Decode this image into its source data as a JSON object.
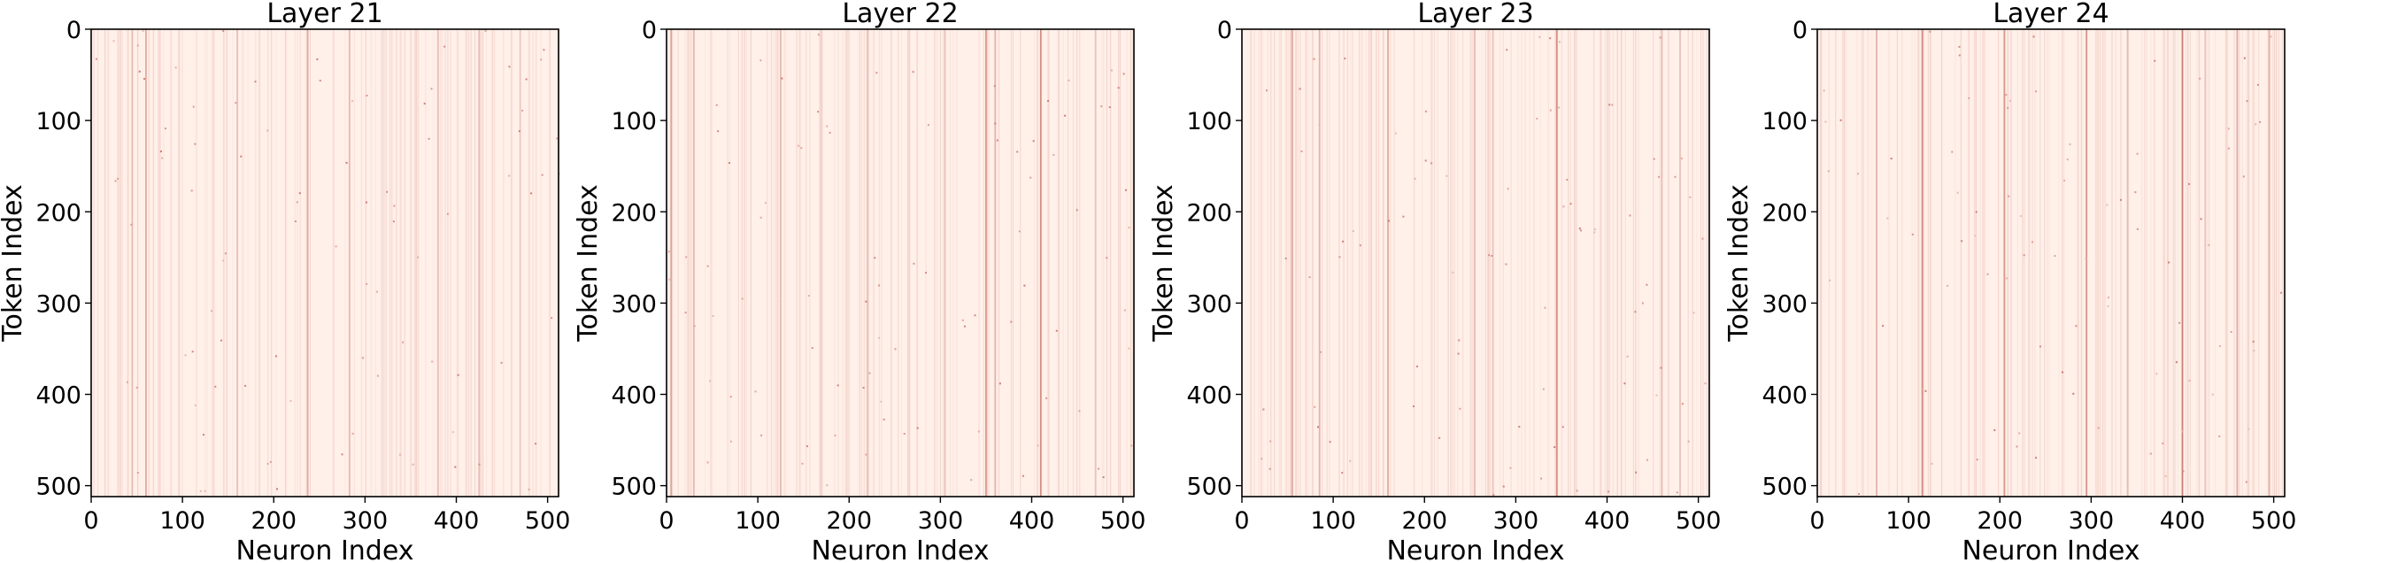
{
  "chart_data": [
    {
      "type": "heatmap",
      "title": "Layer 21",
      "xlabel": "Neuron Index",
      "ylabel": "Token Index",
      "xlim": [
        0,
        512
      ],
      "ylim": [
        512,
        0
      ],
      "xticks": [
        "0",
        "100",
        "200",
        "300",
        "400",
        "500"
      ],
      "yticks": [
        "0",
        "100",
        "200",
        "300",
        "400",
        "500"
      ],
      "colormap": {
        "low": "#fff0e9",
        "high": "#b3473a"
      },
      "grid": false,
      "dark_columns": [
        {
          "neuron": 45,
          "strength": 0.35
        },
        {
          "neuron": 60,
          "strength": 0.45
        },
        {
          "neuron": 160,
          "strength": 0.3
        },
        {
          "neuron": 237,
          "strength": 0.45
        },
        {
          "neuron": 283,
          "strength": 0.35
        },
        {
          "neuron": 380,
          "strength": 0.3
        },
        {
          "neuron": 425,
          "strength": 0.35
        },
        {
          "neuron": 470,
          "strength": 0.25
        }
      ]
    },
    {
      "type": "heatmap",
      "title": "Layer 22",
      "xlabel": "Neuron Index",
      "ylabel": "Token Index",
      "xlim": [
        0,
        512
      ],
      "ylim": [
        512,
        0
      ],
      "xticks": [
        "0",
        "100",
        "200",
        "300",
        "400",
        "500"
      ],
      "yticks": [
        "0",
        "100",
        "200",
        "300",
        "400",
        "500"
      ],
      "colormap": {
        "low": "#fff0e9",
        "high": "#b3473a"
      },
      "grid": false,
      "dark_columns": [
        {
          "neuron": 5,
          "strength": 0.5
        },
        {
          "neuron": 30,
          "strength": 0.35
        },
        {
          "neuron": 125,
          "strength": 0.35
        },
        {
          "neuron": 220,
          "strength": 0.3
        },
        {
          "neuron": 305,
          "strength": 0.3
        },
        {
          "neuron": 350,
          "strength": 0.55
        },
        {
          "neuron": 360,
          "strength": 0.4
        },
        {
          "neuron": 410,
          "strength": 0.65
        },
        {
          "neuron": 470,
          "strength": 0.3
        }
      ]
    },
    {
      "type": "heatmap",
      "title": "Layer 23",
      "xlabel": "Neuron Index",
      "ylabel": "Token Index",
      "xlim": [
        0,
        512
      ],
      "ylim": [
        512,
        0
      ],
      "xticks": [
        "0",
        "100",
        "200",
        "300",
        "400",
        "500"
      ],
      "yticks": [
        "0",
        "100",
        "200",
        "300",
        "400",
        "500"
      ],
      "colormap": {
        "low": "#fff0e9",
        "high": "#b3473a"
      },
      "grid": false,
      "dark_columns": [
        {
          "neuron": 55,
          "strength": 0.5
        },
        {
          "neuron": 85,
          "strength": 0.4
        },
        {
          "neuron": 160,
          "strength": 0.45
        },
        {
          "neuron": 255,
          "strength": 0.35
        },
        {
          "neuron": 275,
          "strength": 0.3
        },
        {
          "neuron": 345,
          "strength": 0.65
        },
        {
          "neuron": 460,
          "strength": 0.35
        },
        {
          "neuron": 480,
          "strength": 0.3
        }
      ]
    },
    {
      "type": "heatmap",
      "title": "Layer 24",
      "xlabel": "Neuron Index",
      "ylabel": "Token Index",
      "xlim": [
        0,
        512
      ],
      "ylim": [
        512,
        0
      ],
      "xticks": [
        "0",
        "100",
        "200",
        "300",
        "400",
        "500"
      ],
      "yticks": [
        "0",
        "100",
        "200",
        "300",
        "400",
        "500"
      ],
      "colormap": {
        "low": "#fff0e9",
        "high": "#b3473a"
      },
      "grid": false,
      "dark_columns": [
        {
          "neuron": 65,
          "strength": 0.4
        },
        {
          "neuron": 115,
          "strength": 0.65
        },
        {
          "neuron": 205,
          "strength": 0.6
        },
        {
          "neuron": 295,
          "strength": 0.6
        },
        {
          "neuron": 340,
          "strength": 0.35
        },
        {
          "neuron": 400,
          "strength": 0.75
        },
        {
          "neuron": 425,
          "strength": 0.3
        },
        {
          "neuron": 460,
          "strength": 0.45
        },
        {
          "neuron": 495,
          "strength": 0.4
        }
      ]
    }
  ]
}
